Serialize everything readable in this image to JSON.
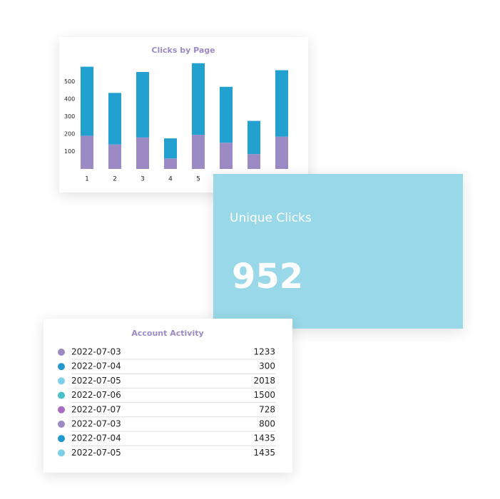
{
  "chart_data": {
    "type": "stacked_bar",
    "title": "Clicks by Page",
    "categories": [
      "1",
      "2",
      "3",
      "4",
      "5",
      null,
      null,
      null
    ],
    "series": [
      {
        "color": "#9b8ac4",
        "values": [
          190,
          140,
          180,
          60,
          195,
          150,
          85,
          185
        ]
      },
      {
        "color": "#22a0d0",
        "values": [
          395,
          295,
          375,
          115,
          410,
          320,
          190,
          380
        ]
      }
    ],
    "ylim": [
      0,
      620
    ],
    "yticks": [
      100,
      200,
      300,
      400,
      500
    ]
  },
  "stat_card": {
    "label": "Unique Clicks",
    "value": 952
  },
  "activity": {
    "title": "Account Activity",
    "rows": [
      {
        "date": "2022-07-03",
        "value": 1233,
        "color": "#9b8ac4"
      },
      {
        "date": "2022-07-04",
        "value": 300,
        "color": "#2299cc"
      },
      {
        "date": "2022-07-05",
        "value": 2018,
        "color": "#7dd0e8"
      },
      {
        "date": "2022-07-06",
        "value": 1500,
        "color": "#4bbfc9"
      },
      {
        "date": "2022-07-07",
        "value": 728,
        "color": "#a86dc0"
      },
      {
        "date": "2022-07-03",
        "value": 800,
        "color": "#9b8ac4"
      },
      {
        "date": "2022-07-04",
        "value": 1435,
        "color": "#2299cc"
      },
      {
        "date": "2022-07-05",
        "value": 1435,
        "color": "#7dd0e8"
      }
    ]
  }
}
